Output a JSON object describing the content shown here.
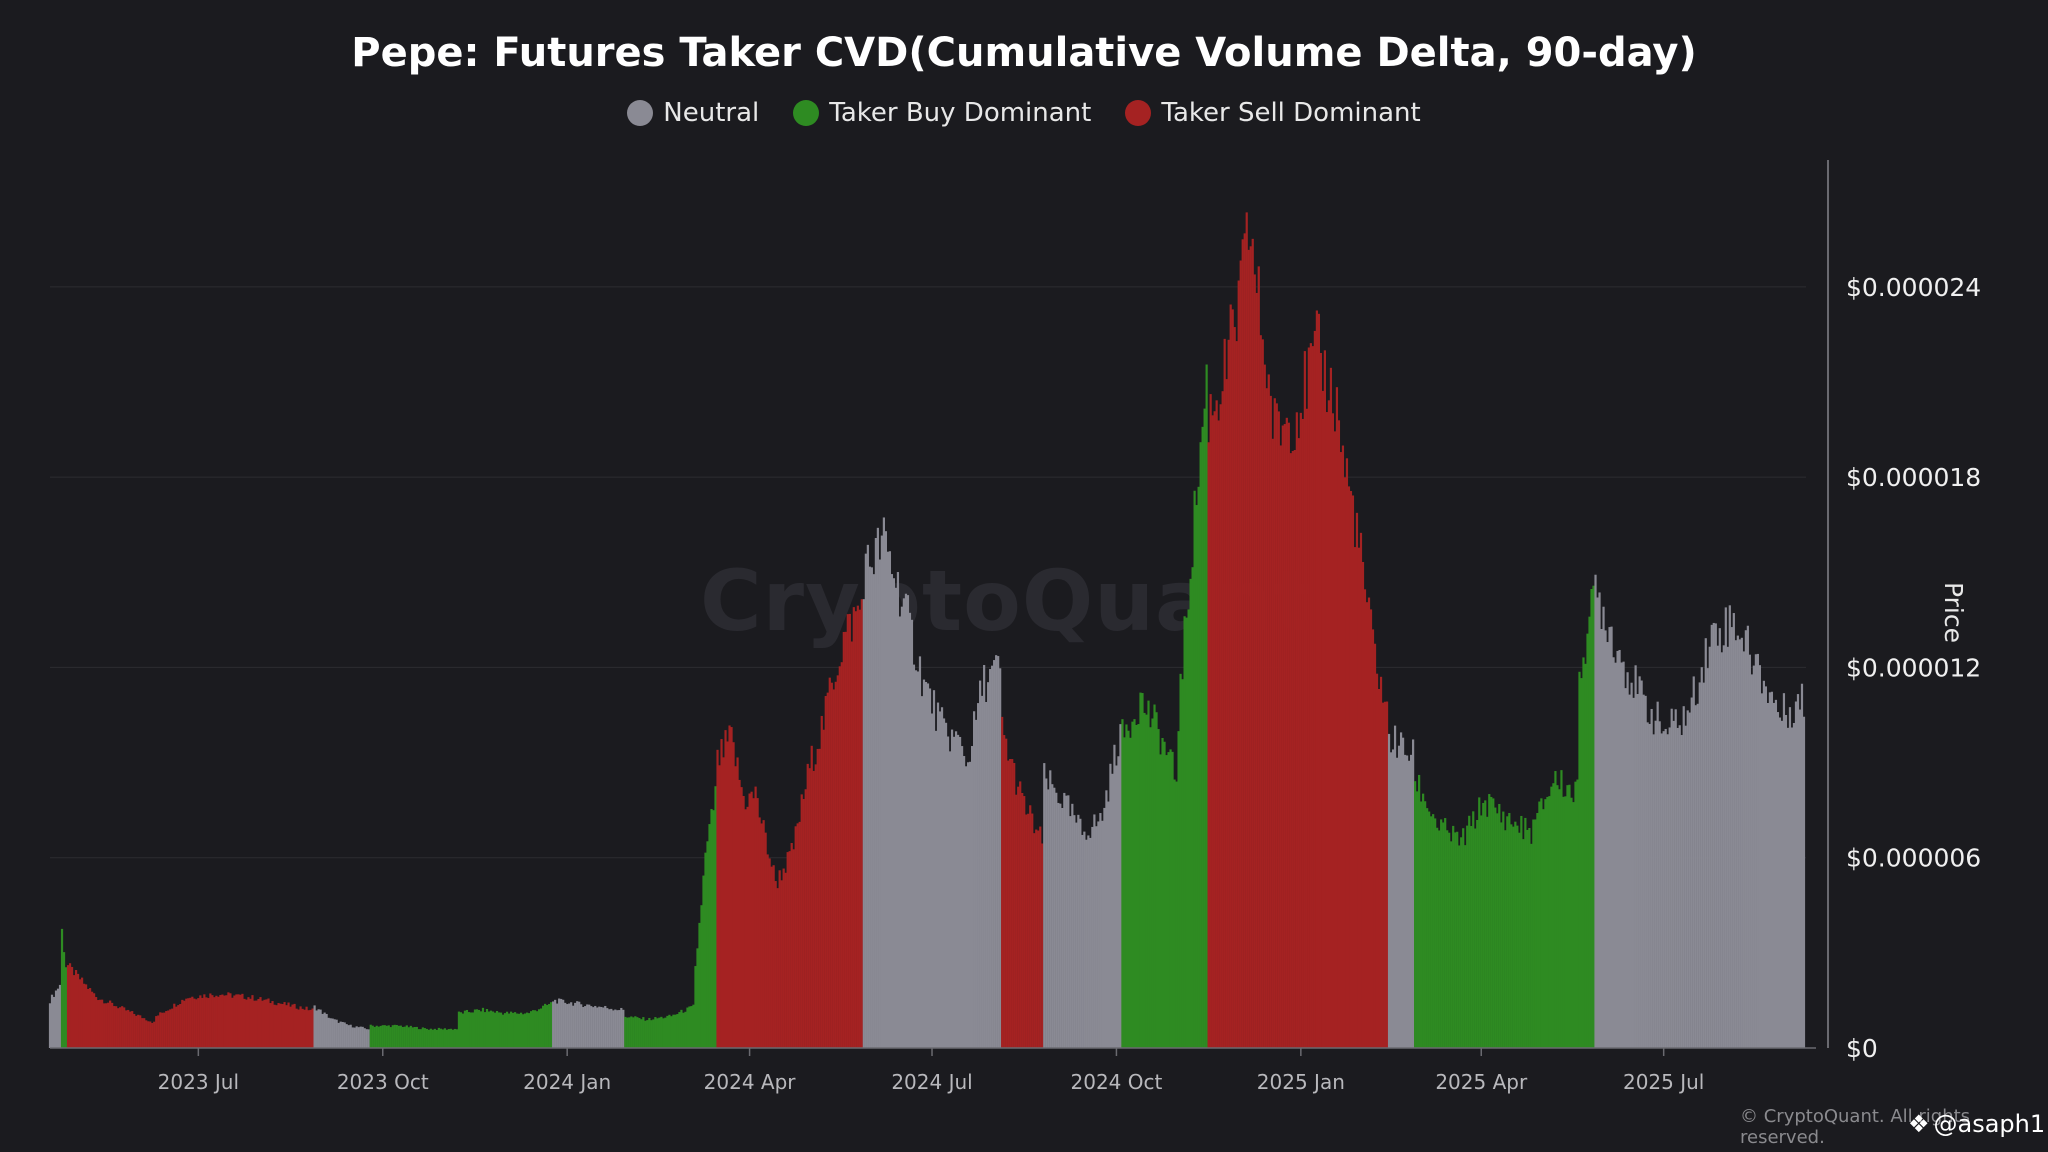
{
  "colors": {
    "background": "#1b1b1f",
    "neutral": "#8a8a94",
    "buy": "#2e8b22",
    "sell": "#a52222",
    "grid": "#2c2c31",
    "axis": "#6a6a70"
  },
  "watermark": "CryptoQuant",
  "copyright": "© CryptoQuant. All rights reserved.",
  "handle": "@asaph1",
  "chart_data": {
    "type": "bar",
    "title": "Pepe: Futures Taker CVD(Cumulative Volume Delta, 90-day)",
    "ylabel": "Price",
    "ylim": [
      0,
      2.8e-05
    ],
    "y_ticks": [
      {
        "value": 0,
        "label": "$0"
      },
      {
        "value": 6e-06,
        "label": "$0.000006"
      },
      {
        "value": 1.2e-05,
        "label": "$0.000012"
      },
      {
        "value": 1.8e-05,
        "label": "$0.000018"
      },
      {
        "value": 2.4e-05,
        "label": "$0.000024"
      }
    ],
    "x_ticks": [
      {
        "date": "2023-07-01",
        "label": "2023 Jul"
      },
      {
        "date": "2023-10-01",
        "label": "2023 Oct"
      },
      {
        "date": "2024-01-01",
        "label": "2024 Jan"
      },
      {
        "date": "2024-04-01",
        "label": "2024 Apr"
      },
      {
        "date": "2024-07-01",
        "label": "2024 Jul"
      },
      {
        "date": "2024-10-01",
        "label": "2024 Oct"
      },
      {
        "date": "2025-01-01",
        "label": "2025 Jan"
      },
      {
        "date": "2025-04-01",
        "label": "2025 Apr"
      },
      {
        "date": "2025-07-01",
        "label": "2025 Jul"
      }
    ],
    "xlim": [
      "2023-04-18",
      "2025-09-10"
    ],
    "grid": true,
    "legend_position": "top-center",
    "legend": [
      {
        "key": "neutral",
        "label": "Neutral"
      },
      {
        "key": "buy",
        "label": "Taker Buy Dominant"
      },
      {
        "key": "sell",
        "label": "Taker Sell Dominant"
      }
    ],
    "series": [
      {
        "start": "2023-04-18",
        "end": "2023-04-24",
        "class": "neutral",
        "values": [
          1.5e-06,
          2e-06
        ]
      },
      {
        "start": "2023-04-24",
        "end": "2023-04-27",
        "class": "buy",
        "values": [
          3.7e-06,
          2.6e-06
        ]
      },
      {
        "start": "2023-04-27",
        "end": "2023-06-10",
        "class": "sell",
        "values": [
          2.6e-06,
          1.6e-06,
          1.2e-06,
          8e-07
        ]
      },
      {
        "start": "2023-06-10",
        "end": "2023-08-28",
        "class": "sell",
        "values": [
          1e-06,
          1.6e-06,
          1.7e-06,
          1.6e-06,
          1.4e-06,
          1.2e-06
        ]
      },
      {
        "start": "2023-08-28",
        "end": "2023-09-25",
        "class": "neutral",
        "values": [
          1.3e-06,
          9e-07,
          7e-07,
          6e-07
        ]
      },
      {
        "start": "2023-09-25",
        "end": "2023-11-08",
        "class": "buy",
        "values": [
          7e-07,
          7e-07,
          6e-07,
          6e-07
        ]
      },
      {
        "start": "2023-11-08",
        "end": "2023-12-25",
        "class": "buy",
        "values": [
          1.1e-06,
          1.2e-06,
          1.1e-06,
          1.1e-06,
          1.4e-06
        ]
      },
      {
        "start": "2023-12-25",
        "end": "2024-01-30",
        "class": "neutral",
        "values": [
          1.5e-06,
          1.4e-06,
          1.3e-06,
          1.2e-06
        ]
      },
      {
        "start": "2024-01-30",
        "end": "2024-03-05",
        "class": "buy",
        "values": [
          1e-06,
          9e-07,
          1e-06,
          1.3e-06
        ]
      },
      {
        "start": "2024-03-05",
        "end": "2024-03-16",
        "class": "buy",
        "values": [
          2.5e-06,
          6e-06,
          8e-06
        ]
      },
      {
        "start": "2024-03-16",
        "end": "2024-04-06",
        "class": "sell",
        "values": [
          9e-06,
          9.8e-06,
          7.8e-06,
          8e-06
        ]
      },
      {
        "start": "2024-04-06",
        "end": "2024-05-10",
        "class": "sell",
        "values": [
          7.4e-06,
          5.2e-06,
          6.2e-06,
          8.8e-06,
          1.05e-05
        ]
      },
      {
        "start": "2024-05-10",
        "end": "2024-05-28",
        "class": "sell",
        "values": [
          1.1e-05,
          1.3e-05,
          1.4e-05
        ]
      },
      {
        "start": "2024-05-28",
        "end": "2024-07-18",
        "class": "neutral",
        "values": [
          1.5e-05,
          1.6e-05,
          1.4e-05,
          1.15e-05,
          1e-05,
          9.5e-06
        ]
      },
      {
        "start": "2024-07-18",
        "end": "2024-08-05",
        "class": "neutral",
        "values": [
          8.8e-06,
          1.15e-05,
          1.2e-05
        ]
      },
      {
        "start": "2024-08-05",
        "end": "2024-08-26",
        "class": "sell",
        "values": [
          1e-05,
          7.8e-06,
          6.5e-06
        ]
      },
      {
        "start": "2024-08-26",
        "end": "2024-10-04",
        "class": "neutral",
        "values": [
          8.5e-06,
          7.8e-06,
          6.8e-06,
          7.2e-06,
          1e-05
        ]
      },
      {
        "start": "2024-10-04",
        "end": "2024-11-01",
        "class": "buy",
        "values": [
          9.8e-06,
          1.1e-05,
          1e-05,
          8.5e-06
        ]
      },
      {
        "start": "2024-11-01",
        "end": "2024-11-16",
        "class": "buy",
        "values": [
          1.05e-05,
          1.6e-05,
          2.1e-05
        ]
      },
      {
        "start": "2024-11-16",
        "end": "2024-12-08",
        "class": "sell",
        "values": [
          2e-05,
          2.1e-05,
          2.3e-05,
          2.6e-05
        ]
      },
      {
        "start": "2024-12-08",
        "end": "2025-01-21",
        "class": "sell",
        "values": [
          2.5e-05,
          1.95e-05,
          2e-05,
          2.2e-05,
          2e-05
        ]
      },
      {
        "start": "2025-01-21",
        "end": "2025-02-14",
        "class": "sell",
        "values": [
          1.9e-05,
          1.65e-05,
          1.3e-05,
          1.05e-05
        ]
      },
      {
        "start": "2025-02-14",
        "end": "2025-02-27",
        "class": "neutral",
        "values": [
          9.8e-06,
          9.5e-06,
          9.2e-06
        ]
      },
      {
        "start": "2025-02-27",
        "end": "2025-05-20",
        "class": "buy",
        "values": [
          8.5e-06,
          7e-06,
          6.5e-06,
          7.8e-06,
          7.2e-06,
          6.8e-06,
          8.5e-06,
          8e-06
        ]
      },
      {
        "start": "2025-05-20",
        "end": "2025-05-28",
        "class": "buy",
        "values": [
          1.2e-05,
          1.4e-05
        ]
      },
      {
        "start": "2025-05-28",
        "end": "2025-09-10",
        "class": "neutral",
        "values": [
          1.45e-05,
          1.25e-05,
          1.1e-05,
          1e-05,
          1.05e-05,
          1.3e-05,
          1.35e-05,
          1.2e-05,
          1.05e-05,
          1.1e-05
        ]
      }
    ]
  }
}
